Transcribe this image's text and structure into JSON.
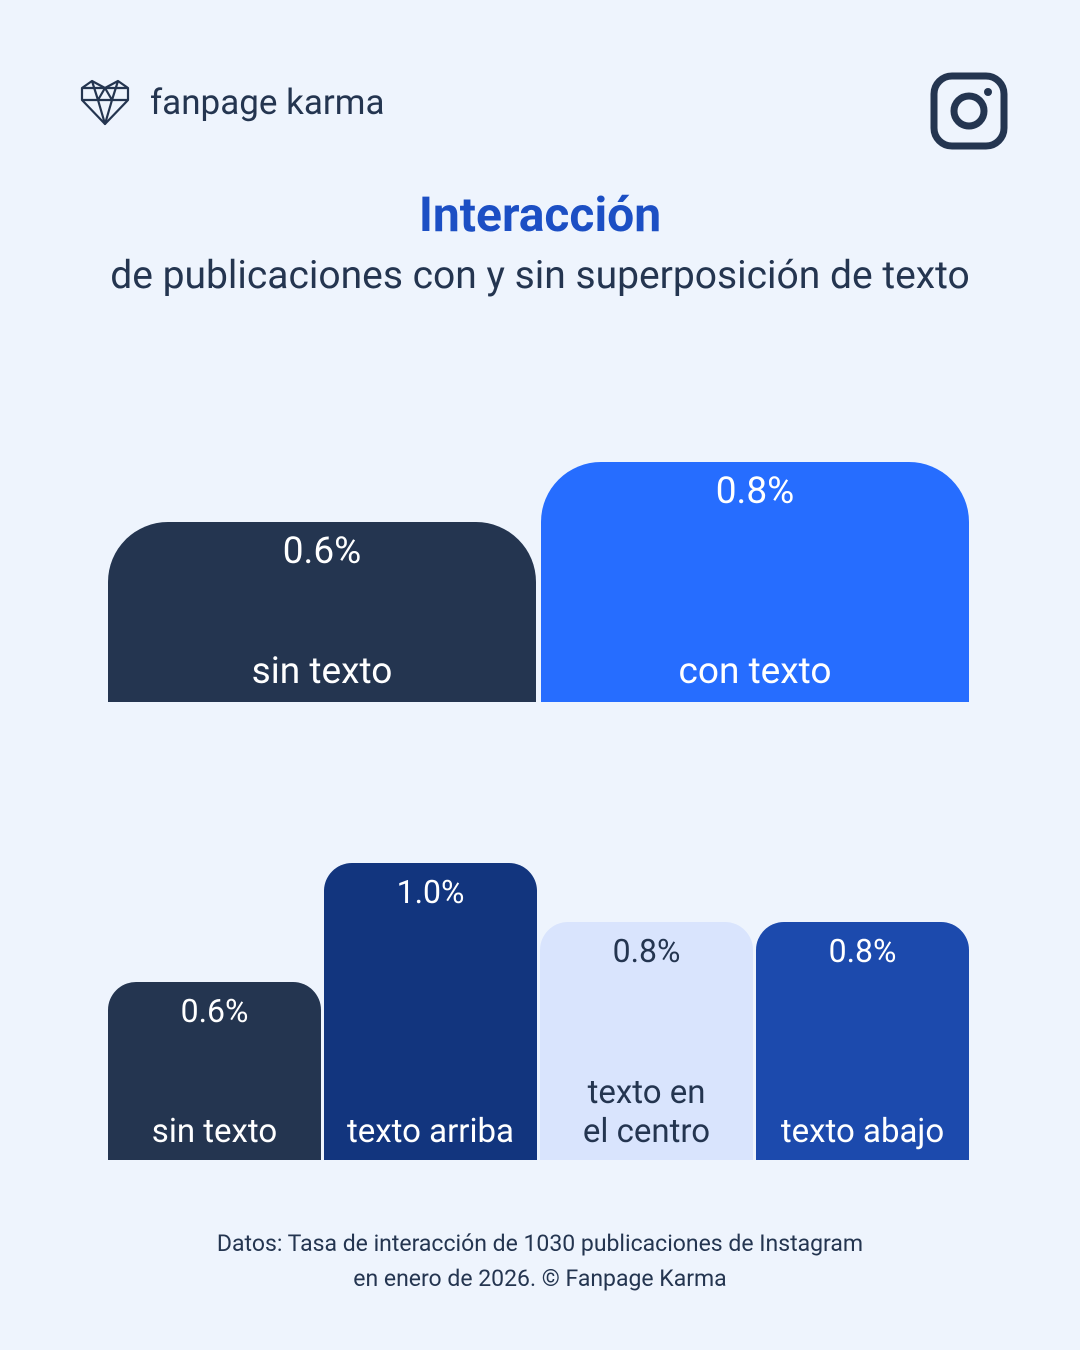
{
  "header": {
    "brand": "fanpage karma",
    "title": "Interacción",
    "subtitle": "de publicaciones con y sin superposición de texto"
  },
  "chart_data": [
    {
      "type": "bar",
      "categories": [
        "sin texto",
        "con texto"
      ],
      "values": [
        0.6,
        0.8
      ],
      "value_labels": [
        "0.6%",
        "0.8%"
      ],
      "colors": [
        "#243550",
        "#266dff"
      ]
    },
    {
      "type": "bar",
      "categories": [
        "sin texto",
        "texto arriba",
        "texto en\nel centro",
        "texto abajo"
      ],
      "values": [
        0.6,
        1.0,
        0.8,
        0.8
      ],
      "value_labels": [
        "0.6%",
        "1.0%",
        "0.8%",
        "0.8%"
      ],
      "colors": [
        "#243550",
        "#12357e",
        "#d9e4fd",
        "#1c4aad"
      ]
    }
  ],
  "footer": {
    "lines": [
      "Datos: Tasa de interacción de 1030 publicaciones de Instagram",
      "en enero de 2026. © Fanpage Karma"
    ]
  }
}
